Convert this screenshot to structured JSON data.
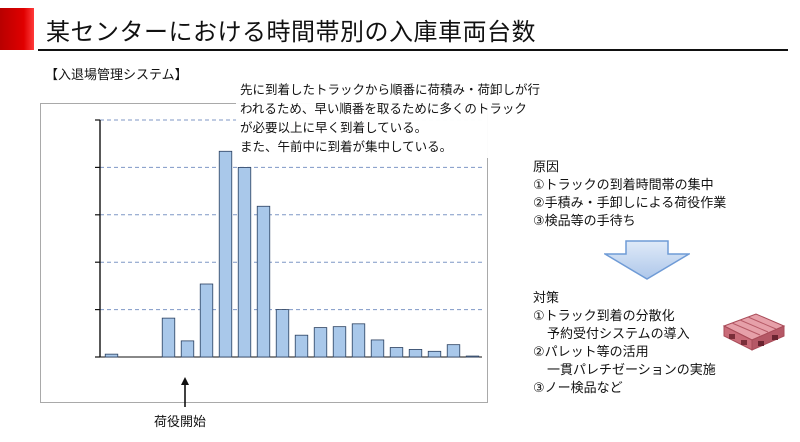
{
  "header": {
    "title": "某センターにおける時間帯別の入庫車両台数",
    "subtitle": "【入退場管理システム】",
    "accent_color": "#d40000"
  },
  "callout": {
    "lines": [
      "先に到着したトラックから順番に荷積み・荷卸しが行",
      "われるため、早い順番を取るために多くのトラック",
      "が必要以上に早く到着している。",
      "また、午前中に到着が集中している。"
    ]
  },
  "chart_data": {
    "type": "bar",
    "values": [
      0.3,
      0,
      0,
      4.1,
      1.7,
      7.7,
      21.7,
      20.0,
      15.9,
      5.0,
      2.3,
      3.1,
      3.2,
      3.5,
      1.8,
      1.0,
      0.8,
      0.6,
      1.3,
      0.1
    ],
    "ylim": [
      0,
      25
    ],
    "bar_color": "#a9c8ea",
    "bar_edge_color": "#2a3f5f",
    "grid": true,
    "gridline_style": "dashed",
    "annotation": {
      "bar_index": 4,
      "label": "荷役開始"
    }
  },
  "cause": {
    "heading": "原因",
    "items": [
      "①トラックの到着時間帯の集中",
      "②手積み・手卸しによる荷役作業",
      "③検品等の手待ち"
    ]
  },
  "measures": {
    "heading": "対策",
    "items": [
      {
        "text": "①トラック到着の分散化",
        "indent": false
      },
      {
        "text": "予約受付システムの導入",
        "indent": true
      },
      {
        "text": "②パレット等の活用",
        "indent": false
      },
      {
        "text": "一貫パレチゼーションの実施",
        "indent": true
      },
      {
        "text": "③ノー検品など",
        "indent": false
      }
    ]
  },
  "icons": {
    "down_arrow": "down-arrow-icon",
    "pallet": "pallet-icon",
    "pallet_color": "#d9818d"
  }
}
